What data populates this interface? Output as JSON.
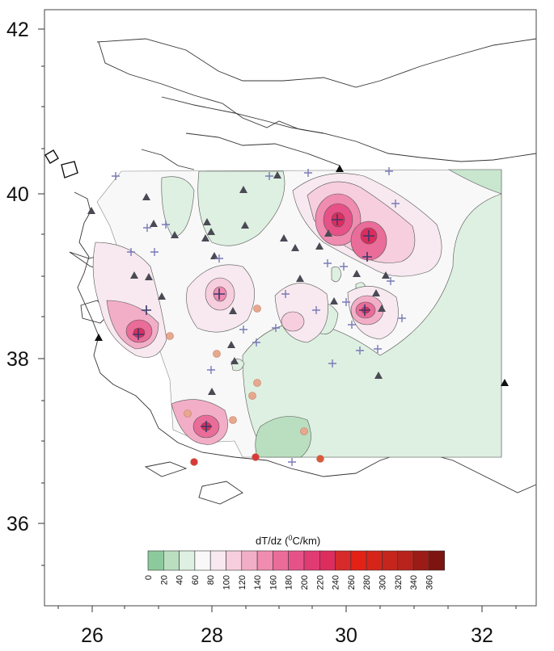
{
  "map": {
    "x_ticks": [
      "26",
      "28",
      "30",
      "32"
    ],
    "y_ticks": [
      "42",
      "40",
      "38",
      "36"
    ],
    "legend_title_main": "dT/dz (",
    "legend_title_sup": "0",
    "legend_title_end": "C/km)"
  },
  "colorbar": {
    "labels": [
      "0",
      "20",
      "40",
      "60",
      "80",
      "100",
      "120",
      "140",
      "160",
      "180",
      "200",
      "220",
      "240",
      "260",
      "280",
      "300",
      "320",
      "340",
      "360"
    ],
    "colors": [
      "#8cc99c",
      "#b9dfc0",
      "#def0e1",
      "#f7f8f7",
      "#f7e9ef",
      "#f6cedd",
      "#f3aec7",
      "#ef8cb0",
      "#ea6c99",
      "#e65287",
      "#e03b72",
      "#dc2d5e",
      "#d72a2a",
      "#e32116",
      "#d5251b",
      "#c5251c",
      "#b8231c",
      "#9b1b16",
      "#7c1410"
    ]
  },
  "markers": {
    "triangles": "dark-triangle-icon",
    "plus": "plus-marker-icon",
    "circles": "circle-marker-icon"
  }
}
